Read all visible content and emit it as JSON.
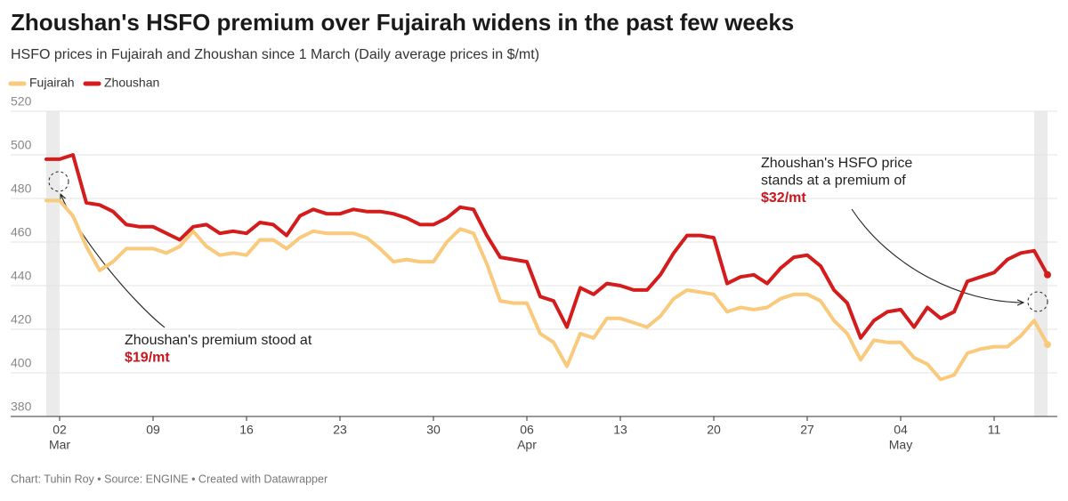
{
  "chart_data": {
    "type": "line",
    "title": "Zhoushan's HSFO premium over Fujairah widens in the past few weeks",
    "subtitle": "HSFO prices in Fujairah and Zhoushan since 1 March (Daily average prices in $/mt)",
    "footer": "Chart: Tuhin Roy • Source: ENGINE • Created with Datawrapper",
    "x": [
      "01 Mar",
      "02 Mar",
      "03 Mar",
      "04 Mar",
      "05 Mar",
      "06 Mar",
      "07 Mar",
      "08 Mar",
      "09 Mar",
      "10 Mar",
      "11 Mar",
      "12 Mar",
      "13 Mar",
      "14 Mar",
      "15 Mar",
      "16 Mar",
      "17 Mar",
      "18 Mar",
      "19 Mar",
      "20 Mar",
      "21 Mar",
      "22 Mar",
      "23 Mar",
      "24 Mar",
      "25 Mar",
      "26 Mar",
      "27 Mar",
      "28 Mar",
      "29 Mar",
      "30 Mar",
      "31 Mar",
      "01 Apr",
      "02 Apr",
      "03 Apr",
      "04 Apr",
      "05 Apr",
      "06 Apr",
      "07 Apr",
      "08 Apr",
      "09 Apr",
      "10 Apr",
      "11 Apr",
      "12 Apr",
      "13 Apr",
      "14 Apr",
      "15 Apr",
      "16 Apr",
      "17 Apr",
      "18 Apr",
      "19 Apr",
      "20 Apr",
      "21 Apr",
      "22 Apr",
      "23 Apr",
      "24 Apr",
      "25 Apr",
      "26 Apr",
      "27 Apr",
      "28 Apr",
      "29 Apr",
      "30 Apr",
      "01 May",
      "02 May",
      "03 May",
      "04 May",
      "05 May",
      "06 May",
      "07 May",
      "08 May",
      "09 May",
      "10 May",
      "11 May",
      "12 May",
      "13 May",
      "14 May",
      "15 May"
    ],
    "series": [
      {
        "name": "Fujairah",
        "color": "#f9c97c",
        "values": [
          479,
          479,
          472,
          458,
          447,
          451,
          457,
          457,
          457,
          455,
          458,
          465,
          458,
          454,
          455,
          454,
          461,
          461,
          457,
          462,
          465,
          464,
          464,
          464,
          462,
          457,
          451,
          452,
          451,
          451,
          460,
          466,
          464,
          450,
          433,
          432,
          432,
          418,
          414,
          403,
          418,
          416,
          425,
          425,
          423,
          421,
          426,
          434,
          438,
          437,
          436,
          428,
          430,
          429,
          430,
          434,
          436,
          436,
          433,
          424,
          418,
          406,
          415,
          414,
          414,
          407,
          404,
          397,
          399,
          409,
          411,
          412,
          412,
          417,
          424,
          413
        ]
      },
      {
        "name": "Zhoushan",
        "color": "#d41c1c",
        "values": [
          498,
          498,
          500,
          478,
          477,
          474,
          468,
          467,
          467,
          464,
          461,
          467,
          468,
          464,
          465,
          464,
          469,
          468,
          463,
          472,
          475,
          473,
          473,
          475,
          474,
          474,
          473,
          471,
          468,
          468,
          471,
          476,
          475,
          463,
          453,
          452,
          451,
          435,
          433,
          421,
          439,
          436,
          441,
          440,
          438,
          438,
          445,
          455,
          463,
          463,
          462,
          441,
          444,
          445,
          441,
          448,
          453,
          454,
          449,
          438,
          432,
          416,
          424,
          428,
          429,
          421,
          430,
          425,
          428,
          442,
          444,
          446,
          452,
          455,
          456,
          445
        ]
      }
    ],
    "ylim": [
      380,
      520
    ],
    "yticks": [
      380,
      400,
      420,
      440,
      460,
      480,
      500,
      520
    ],
    "grid": true,
    "xticks": [
      {
        "value": "02 Mar",
        "label": "02"
      },
      {
        "value": "09 Mar",
        "label": "09"
      },
      {
        "value": "16 Mar",
        "label": "16"
      },
      {
        "value": "23 Mar",
        "label": "23"
      },
      {
        "value": "30 Mar",
        "label": "30"
      },
      {
        "value": "06 Apr",
        "label": "06"
      },
      {
        "value": "13 Apr",
        "label": "13"
      },
      {
        "value": "20 Apr",
        "label": "20"
      },
      {
        "value": "27 Apr",
        "label": "27"
      },
      {
        "value": "04 May",
        "label": "04"
      },
      {
        "value": "11 May",
        "label": "11"
      }
    ],
    "xtick_months": [
      {
        "value": "02 Mar",
        "label": "Mar"
      },
      {
        "value": "06 Apr",
        "label": "Apr"
      },
      {
        "value": "04 May",
        "label": "May"
      }
    ],
    "highlight_ranges": [
      [
        "01 Mar",
        "02 Mar"
      ],
      [
        "14 May",
        "15 May"
      ]
    ],
    "annotations": [
      {
        "lines": [
          "Zhoushan's premium stood at"
        ],
        "highlight": "$19/mt"
      },
      {
        "lines": [
          "Zhoushan's HSFO price",
          "stands at a premium of"
        ],
        "highlight": "$32/mt"
      }
    ],
    "legend": "top-left"
  }
}
